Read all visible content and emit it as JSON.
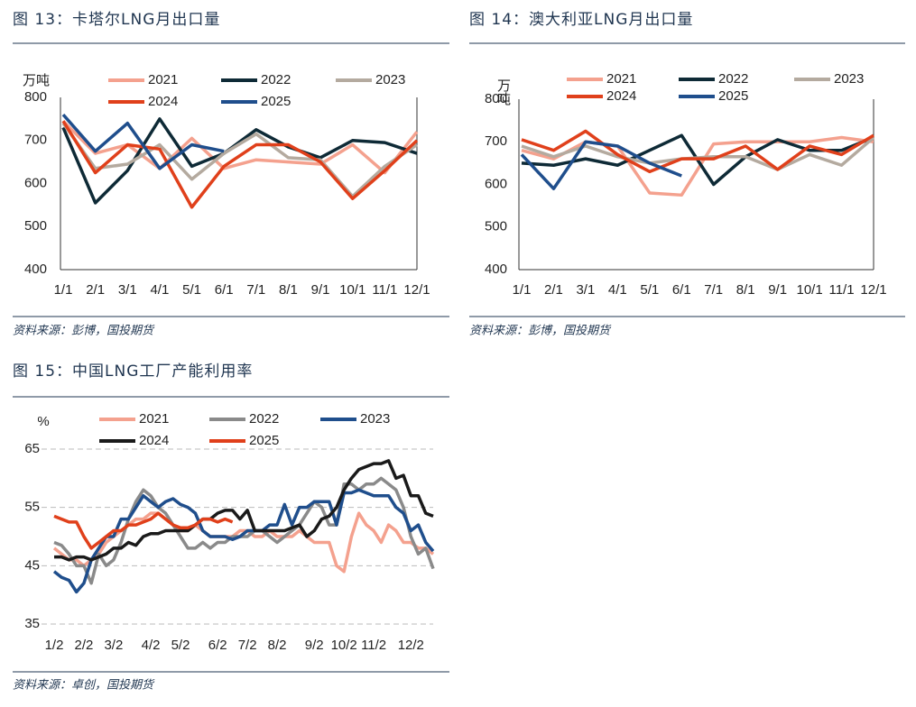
{
  "charts": [
    {
      "title": "图 13：卡塔尔LNG月出口量",
      "source": "资料来源：彭博，国投期货",
      "chart_data": {
        "type": "line",
        "y_label": "万吨",
        "categories": [
          "1/1",
          "2/1",
          "3/1",
          "4/1",
          "5/1",
          "6/1",
          "7/1",
          "8/1",
          "9/1",
          "10/1",
          "11/1",
          "12/1"
        ],
        "ylim": [
          400,
          800
        ],
        "yticks": [
          400,
          500,
          600,
          700,
          800
        ],
        "grid": false,
        "series": [
          {
            "name": "2021",
            "color": "#f4a18e",
            "values": [
              745,
              670,
              690,
              635,
              705,
              635,
              655,
              650,
              645,
              690,
              625,
              720
            ]
          },
          {
            "name": "2022",
            "color": "#0e2a36",
            "values": [
              730,
              555,
              630,
              750,
              640,
              670,
              725,
              685,
              660,
              700,
              695,
              670
            ]
          },
          {
            "name": "2023",
            "color": "#b4aa9f",
            "values": [
              740,
              635,
              645,
              690,
              610,
              670,
              715,
              660,
              655,
              570,
              640,
              690
            ]
          },
          {
            "name": "2024",
            "color": "#e0401b",
            "values": [
              745,
              625,
              690,
              680,
              545,
              640,
              690,
              690,
              650,
              565,
              630,
              700
            ]
          },
          {
            "name": "2025",
            "color": "#1f4e8c",
            "values": [
              760,
              675,
              740,
              635,
              690,
              675,
              null,
              null,
              null,
              null,
              null,
              null
            ]
          }
        ]
      }
    },
    {
      "title": "图 14：澳大利亚LNG月出口量",
      "source": "资料来源：彭博，国投期货",
      "chart_data": {
        "type": "line",
        "y_label": "万吨",
        "categories": [
          "1/1",
          "2/1",
          "3/1",
          "4/1",
          "5/1",
          "6/1",
          "7/1",
          "8/1",
          "9/1",
          "10/1",
          "11/1",
          "12/1"
        ],
        "ylim": [
          400,
          800
        ],
        "yticks": [
          400,
          500,
          600,
          700,
          800
        ],
        "grid": false,
        "series": [
          {
            "name": "2021",
            "color": "#f4a18e",
            "values": [
              680,
              660,
              700,
              690,
              580,
              575,
              695,
              700,
              700,
              700,
              710,
              700
            ]
          },
          {
            "name": "2022",
            "color": "#0e2a36",
            "values": [
              650,
              645,
              660,
              645,
              680,
              715,
              600,
              665,
              705,
              680,
              680,
              710
            ]
          },
          {
            "name": "2023",
            "color": "#b4aa9f",
            "values": [
              690,
              665,
              690,
              665,
              650,
              660,
              665,
              665,
              635,
              670,
              645,
              710
            ]
          },
          {
            "name": "2024",
            "color": "#e0401b",
            "values": [
              705,
              680,
              725,
              670,
              630,
              660,
              660,
              690,
              635,
              690,
              670,
              715
            ]
          },
          {
            "name": "2025",
            "color": "#1f4e8c",
            "values": [
              670,
              590,
              700,
              690,
              650,
              620,
              null,
              null,
              null,
              null,
              null,
              null
            ]
          }
        ]
      }
    },
    {
      "title": "图 15：中国LNG工厂产能利用率",
      "source": "资料来源：卓创，国投期货",
      "chart_data": {
        "type": "line",
        "y_label": "%",
        "categories": [
          "1/2",
          null,
          null,
          null,
          "2/2",
          null,
          null,
          null,
          "3/2",
          null,
          null,
          null,
          null,
          "4/2",
          null,
          null,
          null,
          "5/2",
          null,
          null,
          null,
          null,
          "6/2",
          null,
          null,
          null,
          "7/2",
          null,
          null,
          null,
          "8/2",
          null,
          null,
          null,
          null,
          "9/2",
          null,
          null,
          null,
          "10/2",
          null,
          null,
          null,
          "11/2",
          null,
          null,
          null,
          null,
          "12/2",
          null,
          null,
          null
        ],
        "ylim": [
          35,
          65
        ],
        "yticks": [
          35,
          45,
          55,
          65
        ],
        "grid": true,
        "series": [
          {
            "name": "2021",
            "color": "#f4a18e",
            "values": [
              48,
              47,
              46,
              46,
              45,
              46,
              47,
              49,
              50,
              51,
              52,
              53,
              53,
              54,
              54,
              53,
              52,
              51,
              51,
              52,
              51,
              50,
              50,
              50,
              50,
              51,
              51,
              50,
              50,
              51,
              50,
              50,
              50,
              51,
              50,
              49,
              49,
              49,
              45,
              44,
              50,
              54,
              52,
              51,
              49,
              52,
              51,
              49,
              49,
              48,
              48,
              47
            ]
          },
          {
            "name": "2022",
            "color": "#8a8a8a",
            "values": [
              49,
              48.5,
              47,
              45,
              45,
              42,
              47,
              45,
              46,
              49,
              53,
              56,
              58,
              57,
              55,
              54,
              52,
              50,
              48,
              48,
              49,
              48,
              49,
              49,
              50,
              50,
              50,
              51,
              51,
              50,
              49,
              50,
              51,
              52,
              54,
              56,
              55,
              52,
              52,
              59,
              59,
              58,
              59,
              59,
              60,
              59,
              58,
              55,
              50,
              47,
              48,
              44.5
            ]
          },
          {
            "name": "2023",
            "color": "#1f4e8c",
            "values": [
              44,
              43,
              42.5,
              40.5,
              42,
              46,
              48,
              50,
              50,
              53,
              53,
              55,
              57,
              56,
              55,
              56,
              56.5,
              55.5,
              55,
              54,
              51,
              50,
              50,
              50,
              49.5,
              50,
              51,
              51,
              51,
              52,
              52,
              55.5,
              52,
              55,
              55,
              56,
              56,
              56,
              52,
              57.5,
              57.5,
              58,
              57.5,
              57,
              57,
              57,
              55,
              54,
              51,
              52,
              49,
              47.5
            ]
          },
          {
            "name": "2024",
            "color": "#1a1a1a",
            "values": [
              46.5,
              46.5,
              46,
              46.5,
              46.5,
              46,
              46.5,
              47,
              48,
              48,
              49,
              48.5,
              50,
              50.5,
              50.5,
              51,
              51,
              51,
              51,
              52,
              53,
              53,
              54,
              54.5,
              54.5,
              53,
              54.5,
              51,
              51,
              51,
              51,
              51,
              51.5,
              52,
              50,
              51,
              53,
              53.5,
              55,
              58,
              60,
              61.5,
              62,
              62.5,
              62.5,
              63,
              60,
              60.5,
              57,
              57,
              54,
              53.5
            ]
          },
          {
            "name": "2025",
            "color": "#e0401b",
            "values": [
              53.5,
              53,
              52.5,
              52.5,
              50,
              48,
              49,
              50,
              51,
              51,
              52,
              52,
              52.5,
              53,
              54,
              53,
              52,
              51.5,
              51.5,
              52,
              53,
              53,
              52.5,
              53,
              52.5,
              null,
              null,
              null,
              null,
              null,
              null,
              null,
              null,
              null,
              null,
              null,
              null,
              null,
              null,
              null,
              null,
              null,
              null,
              null,
              null,
              null,
              null,
              null,
              null,
              null,
              null,
              null
            ]
          }
        ]
      }
    }
  ]
}
